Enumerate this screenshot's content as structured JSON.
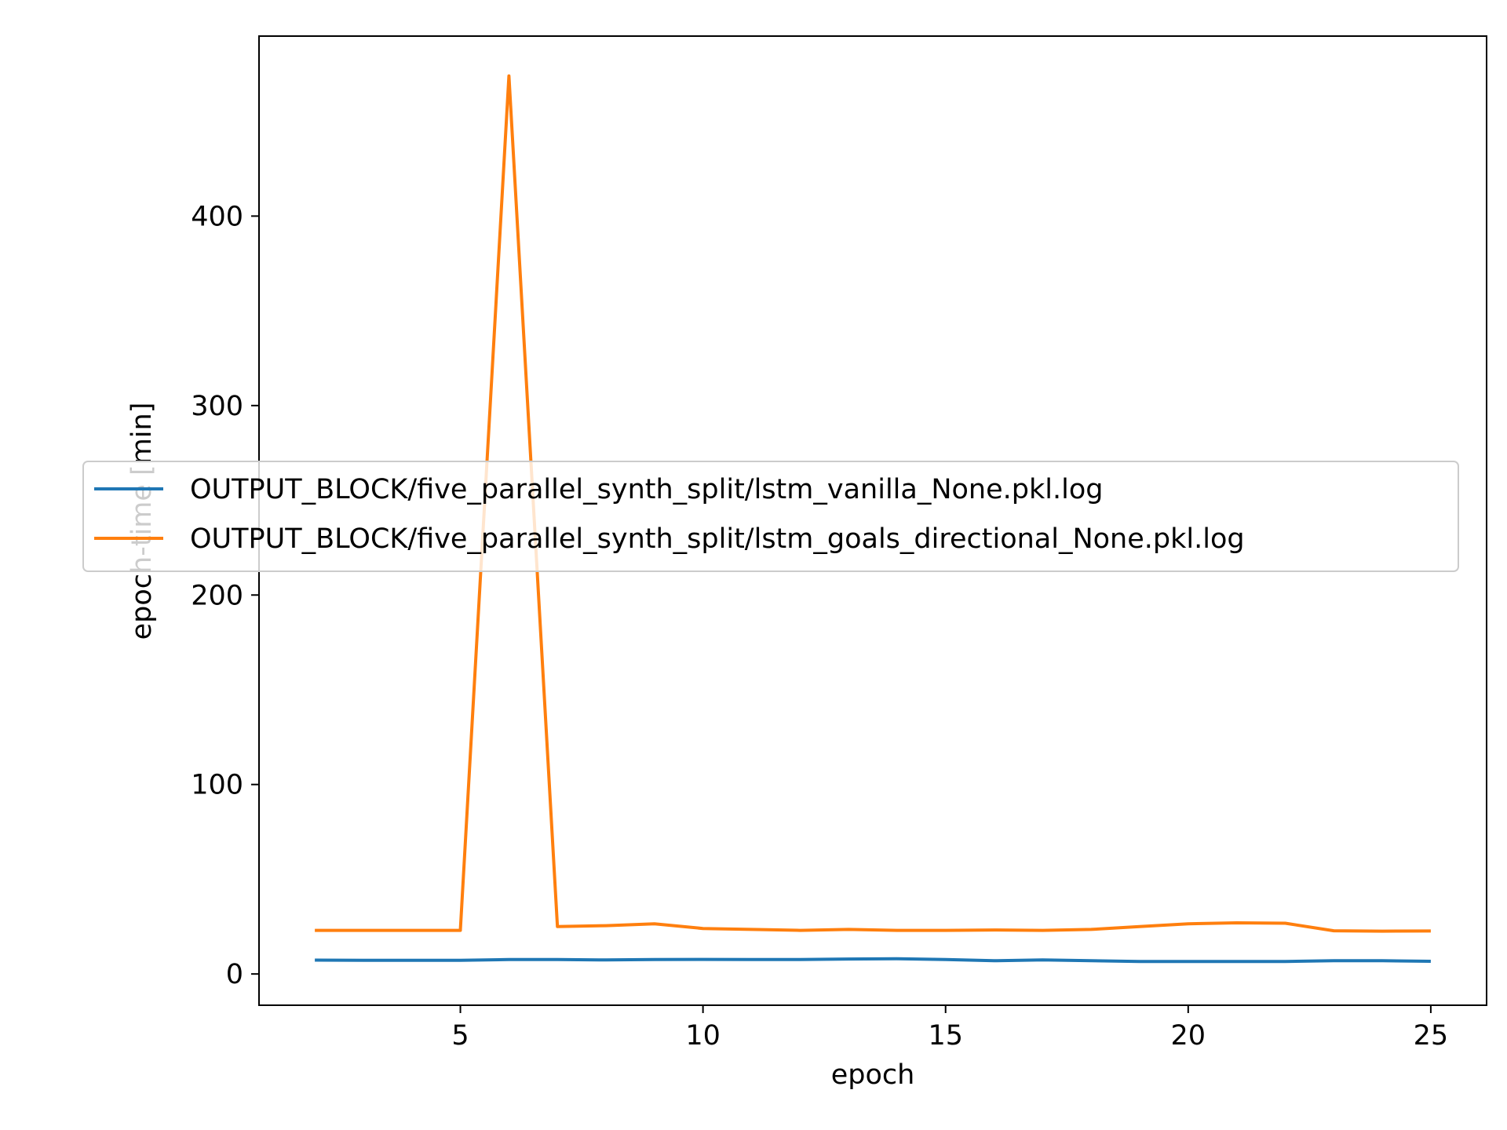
{
  "chart_data": {
    "type": "line",
    "title": "",
    "xlabel": "epoch",
    "ylabel": "epoch-time [min]",
    "xlim": [
      0.85,
      26.15
    ],
    "ylim": [
      -16.5,
      495
    ],
    "xticks": [
      5,
      10,
      15,
      20,
      25
    ],
    "yticks": [
      0,
      100,
      200,
      300,
      400
    ],
    "grid": false,
    "legend_position": "center-left",
    "x": [
      2,
      3,
      4,
      5,
      6,
      7,
      8,
      9,
      10,
      11,
      12,
      13,
      14,
      15,
      16,
      17,
      18,
      19,
      20,
      21,
      22,
      23,
      24,
      25
    ],
    "series": [
      {
        "name": "OUTPUT_BLOCK/five_parallel_synth_split/lstm_vanilla_None.pkl.log",
        "color": "#1f77b4",
        "values": [
          7.3,
          7.2,
          7.2,
          7.2,
          7.6,
          7.6,
          7.4,
          7.6,
          7.7,
          7.6,
          7.6,
          7.9,
          8.0,
          7.6,
          7.0,
          7.4,
          7.0,
          6.6,
          6.6,
          6.6,
          6.6,
          7.0,
          7.0,
          6.7
        ]
      },
      {
        "name": "OUTPUT_BLOCK/five_parallel_synth_split/lstm_goals_directional_None.pkl.log",
        "color": "#ff7f0e",
        "values": [
          23.0,
          23.0,
          23.0,
          23.0,
          474.0,
          25.0,
          25.5,
          26.5,
          24.0,
          23.5,
          23.0,
          23.5,
          23.0,
          23.0,
          23.2,
          23.0,
          23.5,
          25.0,
          26.5,
          27.0,
          26.8,
          22.8,
          22.6,
          22.7
        ]
      }
    ]
  }
}
